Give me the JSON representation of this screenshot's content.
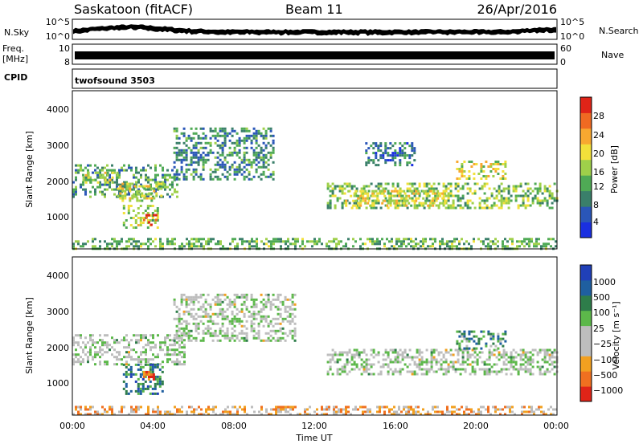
{
  "header": {
    "station": "Saskatoon (fitACF)",
    "beam": "Beam 11",
    "date": "26/Apr/2016"
  },
  "ancillary": {
    "nsky_label": "N.Sky",
    "nsky_ticks": [
      "10^5",
      "10^0"
    ],
    "nsearch_label": "N.Search",
    "nsearch_ticks": [
      "10^5",
      "10^0"
    ],
    "freq_label": "Freq.",
    "freq_unit": "[MHz]",
    "freq_ticks": [
      "10",
      "8"
    ],
    "nave_label": "Nave",
    "nave_ticks": [
      "60",
      "0"
    ],
    "cpid_label": "CPID",
    "cpid_value": "twofsound 3503"
  },
  "chart_data": [
    {
      "type": "heatmap",
      "name": "power",
      "ylabel": "Slant Range [km]",
      "ylim": [
        200,
        4500
      ],
      "yticks": [
        "4000",
        "3000",
        "2000",
        "1000"
      ],
      "xlim": [
        0,
        24
      ],
      "colorbar_label": "Power [dB]",
      "colorbar_ticks": [
        "28",
        "24",
        "20",
        "16",
        "12",
        "8",
        "4"
      ],
      "colors": [
        "#1a2fe0",
        "#2a56b8",
        "#3a7f6a",
        "#4faa55",
        "#9fd04a",
        "#f2e03a",
        "#f8a830",
        "#f06a22",
        "#e02418"
      ],
      "regions": [
        {
          "t0": 0.0,
          "t1": 5.2,
          "r0": 1600,
          "r1": 2500,
          "level": 0.35
        },
        {
          "t0": 0.5,
          "t1": 2.2,
          "r0": 2000,
          "r1": 2300,
          "level": 0.55
        },
        {
          "t0": 2.2,
          "t1": 4.5,
          "r0": 1500,
          "r1": 2000,
          "level": 0.6
        },
        {
          "t0": 2.5,
          "t1": 4.2,
          "r0": 800,
          "r1": 1400,
          "level": 0.5
        },
        {
          "t0": 3.5,
          "t1": 4.2,
          "r0": 850,
          "r1": 1150,
          "level": 0.95
        },
        {
          "t0": 5.0,
          "t1": 10.0,
          "r0": 2100,
          "r1": 3500,
          "level": 0.3
        },
        {
          "t0": 12.6,
          "t1": 24.0,
          "r0": 1300,
          "r1": 2000,
          "level": 0.45
        },
        {
          "t0": 13.5,
          "t1": 18.5,
          "r0": 1400,
          "r1": 1800,
          "level": 0.6
        },
        {
          "t0": 19.0,
          "t1": 21.5,
          "r0": 2100,
          "r1": 2600,
          "level": 0.55
        },
        {
          "t0": 14.5,
          "t1": 17.0,
          "r0": 2500,
          "r1": 3100,
          "level": 0.25
        },
        {
          "t0": 0.0,
          "t1": 24.0,
          "r0": 200,
          "r1": 500,
          "level": 0.4
        }
      ]
    },
    {
      "type": "heatmap",
      "name": "velocity",
      "ylabel": "Slant Range [km]",
      "ylim": [
        200,
        4500
      ],
      "yticks": [
        "4000",
        "3000",
        "2000",
        "1000"
      ],
      "xlim": [
        0,
        24
      ],
      "xticks": [
        "00:00",
        "04:00",
        "08:00",
        "12:00",
        "16:00",
        "20:00",
        "00:00"
      ],
      "xlabel": "Time UT",
      "colorbar_label": "Velocity [m s⁻¹]",
      "colorbar_ticks": [
        "1000",
        "500",
        "100",
        "25",
        "−25",
        "−100",
        "−500",
        "−1000"
      ],
      "colors": [
        "#2040b8",
        "#1f5fa0",
        "#2e7d4a",
        "#5cb84a",
        "#bdbdbd",
        "#bdbdbd",
        "#f2a020",
        "#f07020",
        "#e02418"
      ],
      "regions": [
        {
          "t0": 0.0,
          "t1": 5.5,
          "r0": 1600,
          "r1": 2400,
          "level": 0.5
        },
        {
          "t0": 2.5,
          "t1": 4.5,
          "r0": 800,
          "r1": 1600,
          "level": 0.25
        },
        {
          "t0": 3.5,
          "t1": 4.2,
          "r0": 1200,
          "r1": 1400,
          "level": 0.8
        },
        {
          "t0": 5.0,
          "t1": 11.0,
          "r0": 2200,
          "r1": 3500,
          "level": 0.5
        },
        {
          "t0": 12.6,
          "t1": 24.0,
          "r0": 1300,
          "r1": 2000,
          "level": 0.5
        },
        {
          "t0": 19.0,
          "t1": 21.5,
          "r0": 2000,
          "r1": 2500,
          "level": 0.3
        },
        {
          "t0": 0.0,
          "t1": 24.0,
          "r0": 200,
          "r1": 450,
          "level": 0.7
        }
      ]
    }
  ]
}
